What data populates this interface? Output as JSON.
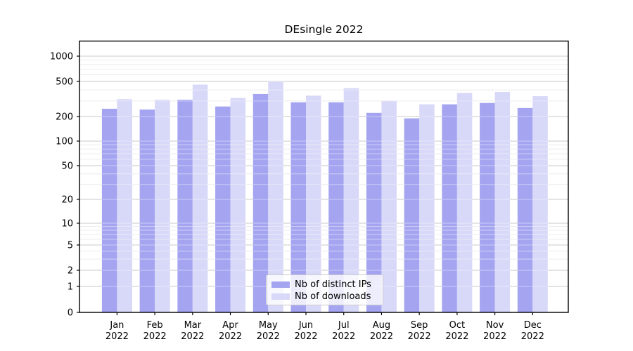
{
  "title": "DEsingle 2022",
  "colors": {
    "ips": "#a4a4f1",
    "downloads": "#d8d8f8",
    "grid_major": "#c8c8c8",
    "grid_minor": "#ececec",
    "axis": "#000000",
    "background": "#ffffff"
  },
  "legend": {
    "items": [
      {
        "label": "Nb of distinct IPs",
        "color_key": "ips"
      },
      {
        "label": "Nb of downloads",
        "color_key": "downloads"
      }
    ]
  },
  "chart_data": {
    "type": "bar",
    "title": "DEsingle 2022",
    "categories": [
      "Jan 2022",
      "Feb 2022",
      "Mar 2022",
      "Apr 2022",
      "May 2022",
      "Jun 2022",
      "Jul 2022",
      "Aug 2022",
      "Sep 2022",
      "Oct 2022",
      "Nov 2022",
      "Dec 2022"
    ],
    "series": [
      {
        "name": "Nb of distinct IPs",
        "color_key": "ips",
        "values": [
          245,
          240,
          310,
          260,
          360,
          290,
          290,
          220,
          190,
          275,
          285,
          250
        ]
      },
      {
        "name": "Nb of downloads",
        "color_key": "downloads",
        "values": [
          315,
          310,
          460,
          325,
          500,
          345,
          420,
          300,
          275,
          370,
          380,
          340
        ]
      }
    ],
    "xlabel": "",
    "ylabel": "",
    "yscale": "symlog",
    "yticks": [
      0,
      1,
      2,
      5,
      10,
      20,
      50,
      100,
      200,
      500,
      1000
    ],
    "ylim": [
      0,
      1500
    ],
    "grid": true,
    "legend_position": "lower center"
  }
}
